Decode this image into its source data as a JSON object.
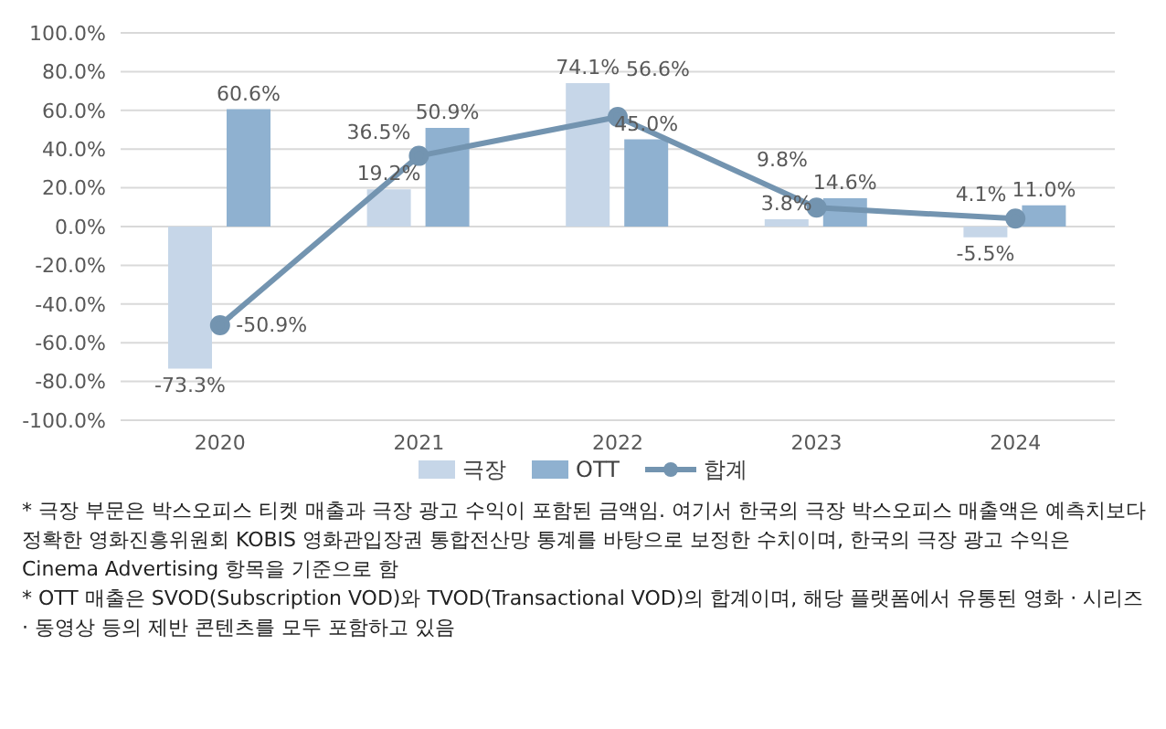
{
  "chart_data": {
    "type": "bar",
    "categories": [
      "2020",
      "2021",
      "2022",
      "2023",
      "2024"
    ],
    "series": [
      {
        "name": "극장",
        "color": "#c6d6e8",
        "values": [
          -73.3,
          19.2,
          74.1,
          3.8,
          -5.5
        ],
        "value_labels": [
          "-73.3%",
          "19.2%",
          "74.1%",
          "3.8%",
          "-5.5%"
        ]
      },
      {
        "name": "OTT",
        "color": "#8fb1d0",
        "values": [
          60.6,
          50.9,
          45.0,
          14.6,
          11.0
        ],
        "value_labels": [
          "60.6%",
          "50.9%",
          "45.0%",
          "14.6%",
          "11.0%"
        ]
      },
      {
        "name": "합계",
        "type": "line",
        "color": "#7394b0",
        "values": [
          -50.9,
          36.5,
          56.6,
          9.8,
          4.1
        ],
        "value_labels": [
          "-50.9%",
          "36.5%",
          "56.6%",
          "9.8%",
          "4.1%"
        ]
      }
    ],
    "ylim": [
      -100,
      100
    ],
    "yticks": [
      {
        "value": -100,
        "label": "-100.0%"
      },
      {
        "value": -80,
        "label": "-80.0%"
      },
      {
        "value": -60,
        "label": "-60.0%"
      },
      {
        "value": -40,
        "label": "-40.0%"
      },
      {
        "value": -20,
        "label": "-20.0%"
      },
      {
        "value": 0,
        "label": "0.0%"
      },
      {
        "value": 20,
        "label": "20.0%"
      },
      {
        "value": 40,
        "label": "40.0%"
      },
      {
        "value": 60,
        "label": "60.0%"
      },
      {
        "value": 80,
        "label": "80.0%"
      },
      {
        "value": 100,
        "label": "100.0%"
      }
    ],
    "grid": "y",
    "legend": "bottom",
    "marker": "circle",
    "annotations": [
      "* 극장 부문은 박스오피스 티켓 매출과 극장 광고 수익이 포함된 금액임. 여기서 한국의 극장 박스오피스 매출액은 예측치보다 정확한 영화진흥위원회 KOBIS 영화관입장권 통합전산망 통계를 바탕으로 보정한 수치이며, 한국의 극장 광고 수익은 Cinema Advertising 항목을 기준으로 함",
      "* OTT 매출은 SVOD(Subscription VOD)와 TVOD(Transactional VOD)의 합계이며, 해당 플랫폼에서 유통된 영화 · 시리즈 · 동영상 등의 제반 콘텐츠를 모두 포함하고 있음"
    ]
  }
}
